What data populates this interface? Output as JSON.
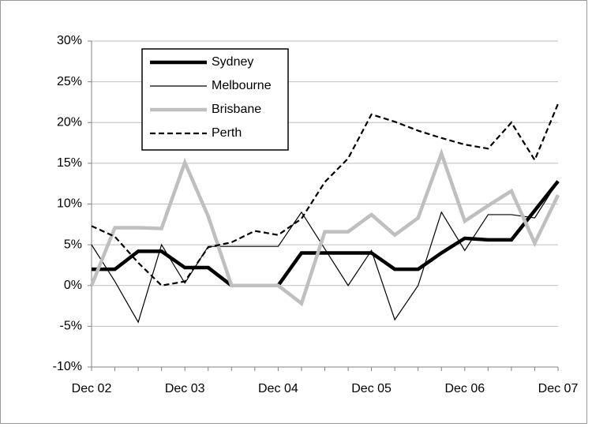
{
  "chart_data": {
    "type": "line",
    "categories": [
      "Dec 02",
      null,
      null,
      null,
      "Dec 03",
      null,
      null,
      null,
      "Dec 04",
      null,
      null,
      null,
      "Dec 05",
      null,
      null,
      null,
      "Dec 06",
      null,
      null,
      null,
      "Dec 07"
    ],
    "series": [
      {
        "name": "Sydney",
        "color": "#000000",
        "width": 4.5,
        "dash": false,
        "values": [
          2,
          2,
          4.2,
          4.2,
          2.2,
          2.2,
          0,
          0,
          0,
          4,
          4,
          4,
          4,
          2,
          2,
          4,
          5.8,
          5.6,
          5.6,
          9.2,
          12.8
        ]
      },
      {
        "name": "Melbourne",
        "color": "#000000",
        "width": 1.2,
        "dash": false,
        "values": [
          5,
          0.5,
          -4.5,
          5,
          0.3,
          4.8,
          4.8,
          4.8,
          4.8,
          9,
          4.5,
          0,
          4.3,
          -4.2,
          0,
          9,
          4.3,
          8.7,
          8.7,
          8.3,
          12.8
        ]
      },
      {
        "name": "Brisbane",
        "color": "#bfbfbf",
        "width": 4.5,
        "dash": false,
        "values": [
          0,
          7.1,
          7.1,
          7,
          15.1,
          8.5,
          0,
          0,
          0,
          -2.2,
          6.6,
          6.6,
          8.7,
          6.2,
          8.3,
          16.2,
          7.9,
          9.8,
          11.6,
          5.2,
          11.1
        ]
      },
      {
        "name": "Perth",
        "color": "#000000",
        "width": 2.2,
        "dash": true,
        "values": [
          7.3,
          6,
          2.8,
          0,
          0.5,
          4.7,
          5.3,
          6.7,
          6.2,
          8.2,
          12.7,
          15.6,
          21,
          20.1,
          19,
          18.1,
          17.3,
          16.8,
          20,
          15.4,
          22.3
        ]
      }
    ],
    "ylim": [
      -10,
      30
    ],
    "yticks": [
      {
        "value": -10,
        "label": "-10%"
      },
      {
        "value": -5,
        "label": "-5%"
      },
      {
        "value": 0,
        "label": "0%"
      },
      {
        "value": 5,
        "label": "5%"
      },
      {
        "value": 10,
        "label": "10%"
      },
      {
        "value": 15,
        "label": "15%"
      },
      {
        "value": 20,
        "label": "20%"
      },
      {
        "value": 25,
        "label": "25%"
      },
      {
        "value": 30,
        "label": "30%"
      }
    ],
    "grid": true
  }
}
